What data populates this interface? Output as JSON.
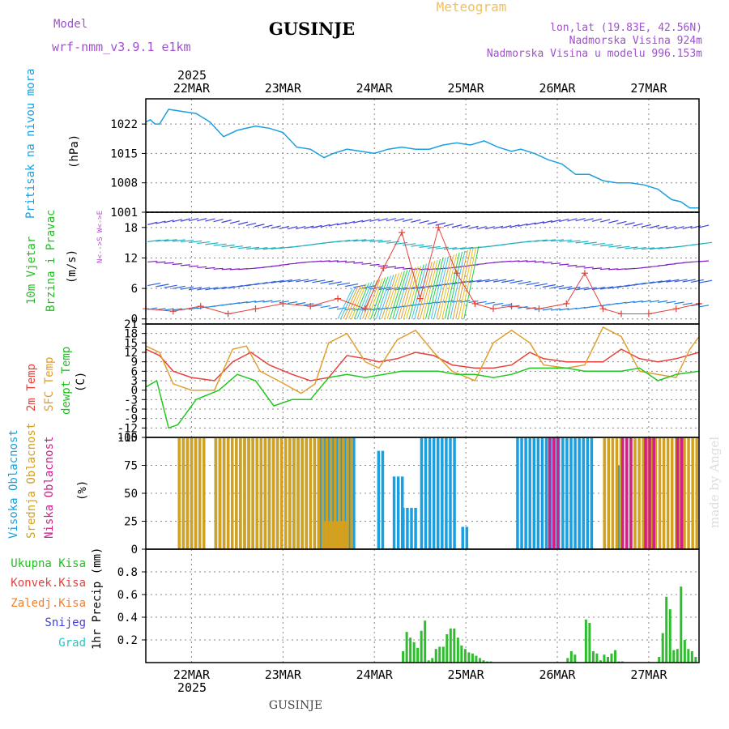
{
  "header": {
    "model_label": "Model",
    "model_name": "wrf-nmm_v3.9.1 e1km",
    "title": "GUSINJE",
    "meteogram": "Meteogram",
    "lonlat": "lon,lat (19.83E, 42.56N)",
    "elevation": "Nadmorska Visina 924m",
    "model_elevation": "Nadmorska Visina u modelu 996.153m",
    "footer_station": "GUSINJE",
    "watermark": "made by Angel"
  },
  "colors": {
    "pressure": "#1aa0e0",
    "temp2m": "#e8403a",
    "sfc_temp": "#e0a030",
    "dewpt": "#20c820",
    "cloud_high": "#1aa0e0",
    "cloud_mid": "#d4a020",
    "cloud_low": "#d0208a",
    "precip": "#2dbd2d",
    "grid": "#888888"
  },
  "time_axis": {
    "year": "2025",
    "days": [
      "22MAR",
      "23MAR",
      "24MAR",
      "25MAR",
      "26MAR",
      "27MAR"
    ],
    "day_positions": [
      0.5,
      1.5,
      2.5,
      3.5,
      4.5,
      5.5
    ],
    "range_days": [
      0,
      6.05
    ]
  },
  "chart_data": [
    {
      "type": "line",
      "panel": "pressure",
      "ylabel_lines": [
        "Pritisak na nivou mora",
        "(hPa)"
      ],
      "ylim": [
        1001,
        1028
      ],
      "yticks": [
        1001,
        1008,
        1015,
        1022
      ],
      "series": [
        {
          "name": "Pritisak na nivou mora",
          "x": [
            0,
            0.05,
            0.1,
            0.15,
            0.25,
            0.4,
            0.55,
            0.7,
            0.85,
            1.0,
            1.2,
            1.35,
            1.5,
            1.65,
            1.8,
            1.95,
            2.05,
            2.2,
            2.35,
            2.5,
            2.65,
            2.8,
            2.95,
            3.1,
            3.25,
            3.4,
            3.55,
            3.7,
            3.85,
            4.0,
            4.1,
            4.25,
            4.4,
            4.55,
            4.7,
            4.85,
            5.0,
            5.15,
            5.3,
            5.45,
            5.6,
            5.75,
            5.85,
            5.95,
            6.05
          ],
          "values": [
            1022.5,
            1023,
            1022,
            1022,
            1025.5,
            1025,
            1024.5,
            1022.5,
            1019,
            1020.5,
            1021.5,
            1021,
            1020,
            1016.5,
            1016,
            1014,
            1015,
            1016,
            1015.5,
            1015,
            1016,
            1016.5,
            1016,
            1016,
            1017,
            1017.5,
            1017,
            1018,
            1016.5,
            1015.5,
            1016,
            1015,
            1013.5,
            1012.5,
            1010,
            1010,
            1008.5,
            1008,
            1008,
            1007.5,
            1006.5,
            1004,
            1003.5,
            1002,
            1002
          ]
        }
      ]
    },
    {
      "type": "scatter",
      "panel": "wind",
      "ylabel_lines": [
        "10m Vjetar",
        "Brzina i Pravac",
        "(m/s)"
      ],
      "compass": "N<-->S  W<->E",
      "ylim": [
        -1,
        21
      ],
      "yticks": [
        0,
        6,
        12,
        18
      ],
      "series": [
        {
          "name": "Brzina vjetra",
          "x": [
            0,
            0.3,
            0.6,
            0.9,
            1.2,
            1.5,
            1.8,
            2.1,
            2.4,
            2.6,
            2.8,
            3.0,
            3.2,
            3.4,
            3.6,
            3.8,
            4.0,
            4.3,
            4.6,
            4.8,
            5.0,
            5.2,
            5.5,
            5.8,
            6.05
          ],
          "values": [
            2,
            1.5,
            2.5,
            1,
            2,
            3,
            2.5,
            4,
            2,
            10,
            17,
            4,
            18,
            9,
            3,
            2,
            2.5,
            2,
            3,
            9,
            2,
            1,
            1,
            2,
            3
          ]
        }
      ]
    },
    {
      "type": "line",
      "panel": "temperature",
      "ylabel_lines": [
        "2m Temp",
        "SFC Temp",
        "dewpt Temp",
        "(C)"
      ],
      "ylim": [
        -15,
        21
      ],
      "yticks": [
        -15,
        -12,
        -9,
        -6,
        -3,
        0,
        3,
        6,
        9,
        12,
        15,
        18,
        21
      ],
      "series": [
        {
          "name": "2m Temp",
          "x": [
            0,
            0.15,
            0.3,
            0.5,
            0.75,
            0.95,
            1.15,
            1.35,
            1.6,
            1.8,
            2.0,
            2.2,
            2.4,
            2.55,
            2.75,
            2.95,
            3.15,
            3.35,
            3.6,
            3.8,
            4.0,
            4.2,
            4.35,
            4.6,
            4.8,
            5.0,
            5.2,
            5.4,
            5.6,
            5.8,
            6.05
          ],
          "values": [
            13,
            11,
            6,
            4,
            3,
            9,
            12,
            8,
            5,
            3,
            4,
            11,
            10,
            9,
            10,
            12,
            11,
            8,
            7,
            7,
            8,
            12,
            10,
            9,
            9,
            9,
            13,
            10,
            9,
            10,
            12
          ]
        },
        {
          "name": "SFC Temp",
          "x": [
            0,
            0.15,
            0.3,
            0.5,
            0.75,
            0.95,
            1.1,
            1.25,
            1.45,
            1.7,
            1.85,
            2.0,
            2.2,
            2.4,
            2.55,
            2.75,
            2.95,
            3.15,
            3.35,
            3.6,
            3.8,
            4.0,
            4.2,
            4.35,
            4.6,
            4.8,
            5.0,
            5.2,
            5.4,
            5.6,
            5.8,
            5.95,
            6.05
          ],
          "values": [
            14,
            12,
            2,
            0,
            0,
            13,
            14,
            6,
            3,
            -1,
            2,
            15,
            18,
            9,
            7,
            16,
            19,
            12,
            6,
            3,
            15,
            19,
            15,
            8,
            7,
            8,
            20,
            17,
            6,
            5,
            4,
            13,
            17
          ]
        },
        {
          "name": "dewpt Temp",
          "x": [
            0,
            0.12,
            0.25,
            0.35,
            0.55,
            0.8,
            1.0,
            1.2,
            1.4,
            1.6,
            1.8,
            2.0,
            2.2,
            2.4,
            2.6,
            2.8,
            3.0,
            3.2,
            3.4,
            3.6,
            3.8,
            4.0,
            4.2,
            4.35,
            4.6,
            4.8,
            5.0,
            5.2,
            5.4,
            5.6,
            5.8,
            6.05
          ],
          "values": [
            1,
            3,
            -12,
            -11,
            -3,
            0,
            5,
            3,
            -5,
            -3,
            -3,
            4,
            5,
            4,
            5,
            6,
            6,
            6,
            5,
            5,
            4,
            5,
            7,
            7,
            7,
            6,
            6,
            6,
            7,
            3,
            5,
            6
          ]
        }
      ]
    },
    {
      "type": "bar",
      "panel": "clouds",
      "ylabel_lines": [
        "Visoka Oblacnost",
        "Srednja Oblacnost",
        "Niska Oblacnost",
        "(%)"
      ],
      "ylim": [
        0,
        100
      ],
      "yticks": [
        0,
        25,
        50,
        75,
        100
      ],
      "series": [
        {
          "name": "Visoka Oblacnost",
          "segments": [
            [
              0.35,
              0.65,
              100
            ],
            [
              0.75,
              1.9,
              100
            ],
            [
              1.9,
              2.3,
              100
            ],
            [
              2.53,
              2.6,
              88
            ],
            [
              2.7,
              2.8,
              65
            ],
            [
              2.8,
              2.95,
              37
            ],
            [
              3.0,
              3.4,
              100
            ],
            [
              3.45,
              3.5,
              20
            ],
            [
              4.05,
              4.9,
              100
            ],
            [
              5.15,
              5.2,
              75
            ]
          ]
        },
        {
          "name": "Srednja Oblacnost",
          "segments": [
            [
              0.35,
              0.65,
              100
            ],
            [
              0.75,
              2.25,
              100
            ],
            [
              1.95,
              2.2,
              25
            ],
            [
              5.0,
              5.2,
              100
            ],
            [
              5.2,
              6.05,
              100
            ]
          ]
        },
        {
          "name": "Niska Oblacnost",
          "segments": [
            [
              4.4,
              4.5,
              100
            ],
            [
              5.2,
              5.3,
              100
            ],
            [
              5.45,
              5.55,
              100
            ],
            [
              5.8,
              5.85,
              100
            ]
          ]
        }
      ]
    },
    {
      "type": "bar",
      "panel": "precip",
      "ylabel_lines": [
        "1hr Precip (mm)"
      ],
      "legend": [
        "Ukupna Kisa",
        "Konvek.Kisa",
        "Zaledj.Kisa",
        "Snijeg",
        "Grad"
      ],
      "ylim": [
        0,
        1.0
      ],
      "yticks": [
        0.2,
        0.4,
        0.6,
        0.8
      ],
      "series": [
        {
          "name": "Ukupna Kisa",
          "x": [
            2.8,
            2.84,
            2.88,
            2.92,
            2.96,
            3.0,
            3.04,
            3.08,
            3.12,
            3.16,
            3.2,
            3.24,
            3.28,
            3.32,
            3.36,
            3.4,
            3.44,
            3.48,
            3.52,
            3.56,
            3.6,
            3.64,
            3.68,
            3.72,
            3.76,
            4.6,
            4.64,
            4.68,
            4.8,
            4.84,
            4.88,
            4.92,
            4.96,
            5.0,
            5.04,
            5.08,
            5.12,
            5.16,
            5.2,
            5.6,
            5.64,
            5.68,
            5.72,
            5.76,
            5.8,
            5.84,
            5.88,
            5.92,
            5.96,
            6.0
          ],
          "values": [
            0.1,
            0.27,
            0.22,
            0.18,
            0.13,
            0.28,
            0.37,
            0.02,
            0.04,
            0.12,
            0.14,
            0.14,
            0.25,
            0.3,
            0.3,
            0.22,
            0.15,
            0.12,
            0.09,
            0.08,
            0.06,
            0.04,
            0.02,
            0.01,
            0.01,
            0.04,
            0.1,
            0.07,
            0.38,
            0.35,
            0.1,
            0.08,
            0.02,
            0.07,
            0.05,
            0.08,
            0.11,
            0.01,
            0.01,
            0.05,
            0.26,
            0.58,
            0.47,
            0.11,
            0.12,
            0.67,
            0.2,
            0.12,
            0.1,
            0.05
          ]
        }
      ]
    }
  ]
}
